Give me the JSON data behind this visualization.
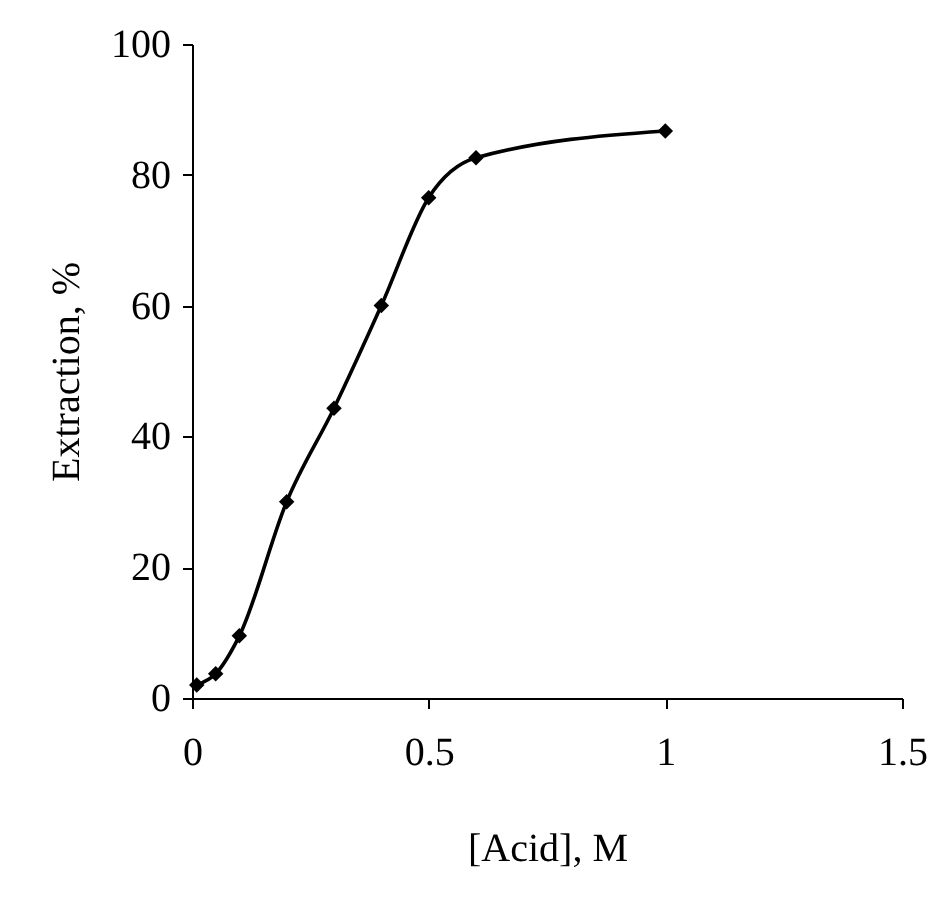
{
  "chart_data": {
    "type": "line",
    "xlabel": "[Acid],  M",
    "ylabel": "Extraction, %",
    "x": [
      0.01,
      0.05,
      0.1,
      0.2,
      0.3,
      0.4,
      0.5,
      0.6,
      1.0
    ],
    "series": [
      {
        "color": "#000000",
        "values": [
          2,
          3.7,
          9.5,
          30,
          44.3,
          60,
          76.5,
          82.6,
          86.7
        ]
      }
    ],
    "xlim": [
      0,
      1.5
    ],
    "xticks": [
      0,
      0.5,
      1,
      1.5
    ],
    "ylim": [
      0,
      100
    ],
    "yticks": [
      0,
      20,
      40,
      60,
      80,
      100
    ],
    "grid": false,
    "marker": "diamond",
    "line_style": "solid"
  }
}
